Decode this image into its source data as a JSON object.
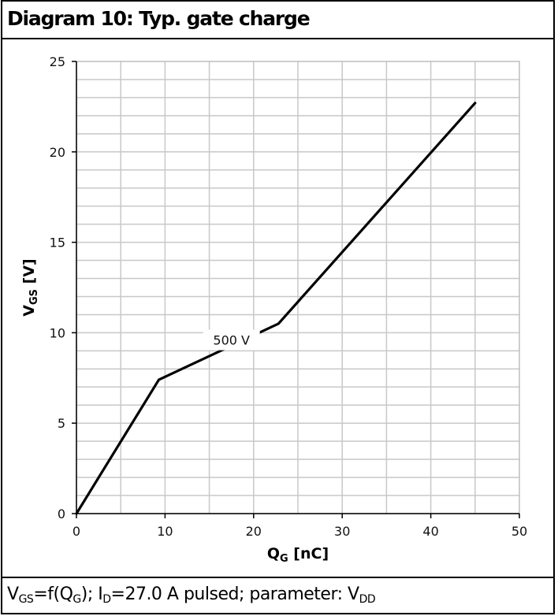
{
  "header": {
    "title": "Diagram 10: Typ. gate charge"
  },
  "footer": {
    "p1": "V",
    "s1": "GS",
    "p2": "=f(Q",
    "s2": "G",
    "p3": "); I",
    "s3": "D",
    "p4": "=27.0 A pulsed; parameter: V",
    "s4": "DD"
  },
  "chart_data": {
    "type": "line",
    "xlabel": {
      "main": "Q",
      "sub": "G",
      "unit": " [nC]"
    },
    "ylabel": {
      "main": "V",
      "sub": "GS",
      "unit": " [V]"
    },
    "xlim": [
      0,
      50
    ],
    "ylim": [
      0,
      25
    ],
    "x_ticks": [
      "0",
      "10",
      "20",
      "30",
      "40",
      "50"
    ],
    "y_ticks": [
      "0",
      "5",
      "10",
      "15",
      "20",
      "25"
    ],
    "grid": true,
    "line_color": "#000000",
    "grid_color": "#c8c8c8",
    "series": [
      {
        "name": "500 V",
        "x": [
          0,
          9.3,
          22.8,
          45
        ],
        "y": [
          0,
          7.4,
          10.5,
          22.7
        ]
      }
    ],
    "annotation": {
      "text": "500 V",
      "x": 17.5,
      "y": 9.6
    }
  }
}
